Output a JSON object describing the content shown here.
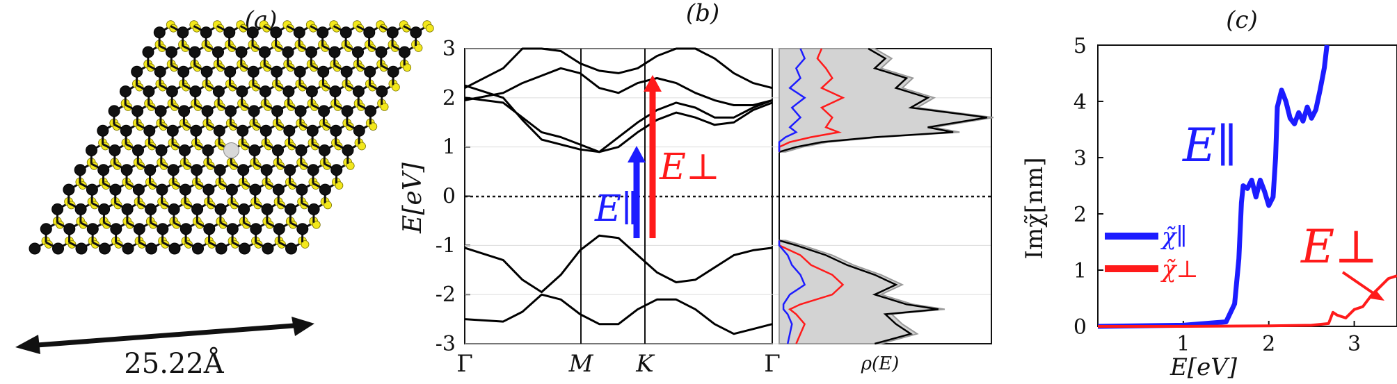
{
  "panels": {
    "a": {
      "label": "(a)",
      "scale_label": "25.22Å",
      "colors": {
        "sulfur": "#f3e81c",
        "metal": "#111111",
        "dopant": "#d8d8d8",
        "bond": "#111111"
      }
    },
    "b": {
      "label": "(b)",
      "ylabel": "E[eV]",
      "yticks": [
        "3",
        "2",
        "1",
        "0",
        "-1",
        "-2",
        "-3"
      ],
      "kpoints": [
        "Γ",
        "M",
        "K",
        "Γ"
      ],
      "dos_label": "ρ(E)",
      "arrow_parallel_label": "E∥",
      "arrow_perp_label": "E⊥",
      "colors": {
        "parallel": "#1c1cff",
        "perp": "#ff1a1a",
        "bands": "#000000",
        "dos_fill": "#d3d3d3"
      }
    },
    "c": {
      "label": "(c)",
      "ylabel": "Imχ̃[nm]",
      "xlabel": "E[eV]",
      "xticks": [
        "1",
        "2",
        "3"
      ],
      "yticks": [
        "0",
        "1",
        "2",
        "3",
        "4",
        "5"
      ],
      "legend": [
        "χ̃∥",
        "χ̃⊥"
      ],
      "annot_parallel": "E∥",
      "annot_perp": "E⊥"
    }
  },
  "chart_data": [
    {
      "type": "line",
      "panel": "b",
      "title": "",
      "xlabel": "",
      "ylabel": "E[eV]",
      "ylim": [
        -3,
        3
      ],
      "x_categories": [
        "Γ",
        "M",
        "K",
        "Γ"
      ],
      "x": [
        0,
        0.5,
        0.75,
        1.0,
        1.25,
        1.5,
        1.75,
        2.0,
        2.25,
        2.5,
        2.75,
        3.0,
        3.25,
        3.5,
        3.75,
        4.0
      ],
      "series": [
        {
          "values": [
            -1.05,
            -1.3,
            -1.7,
            -1.95,
            -1.6,
            -1.1,
            -0.8,
            -0.85,
            -1.2,
            -1.55,
            -1.75,
            -1.7,
            -1.45,
            -1.2,
            -1.1,
            -1.05
          ]
        },
        {
          "values": [
            -2.5,
            -2.55,
            -2.35,
            -2.0,
            -2.1,
            -2.4,
            -2.6,
            -2.6,
            -2.3,
            -2.1,
            -2.1,
            -2.3,
            -2.6,
            -2.8,
            -2.7,
            -2.6
          ]
        },
        {
          "values": [
            2.25,
            2.0,
            1.55,
            1.15,
            1.05,
            0.95,
            0.9,
            1.2,
            1.5,
            1.75,
            1.9,
            1.8,
            1.6,
            1.6,
            1.8,
            1.95
          ]
        },
        {
          "values": [
            2.0,
            1.9,
            1.6,
            1.3,
            1.2,
            1.05,
            0.9,
            1.0,
            1.3,
            1.55,
            1.7,
            1.6,
            1.45,
            1.5,
            1.75,
            1.9
          ]
        },
        {
          "values": [
            2.2,
            2.6,
            3.0,
            3.0,
            2.95,
            2.7,
            2.55,
            2.5,
            2.6,
            2.85,
            3.0,
            3.0,
            2.8,
            2.5,
            2.3,
            2.2
          ]
        },
        {
          "values": [
            1.95,
            2.1,
            2.3,
            2.45,
            2.6,
            2.5,
            2.2,
            2.1,
            2.3,
            2.4,
            2.3,
            2.1,
            1.95,
            1.85,
            1.85,
            1.95
          ]
        }
      ],
      "arrows": [
        {
          "name": "E∥",
          "x": 0.85,
          "from": -0.8,
          "to": 0.9
        },
        {
          "name": "E⊥",
          "x": 0.95,
          "from": -0.8,
          "to": 2.5
        }
      ]
    },
    {
      "type": "area",
      "panel": "b-dos",
      "xlabel": "ρ(E)",
      "ylim": [
        -3,
        3
      ],
      "energies": [
        3.0,
        2.8,
        2.6,
        2.4,
        2.2,
        2.0,
        1.8,
        1.6,
        1.4,
        1.3,
        1.2,
        1.1,
        1.0,
        0.9,
        -0.9,
        -1.0,
        -1.2,
        -1.4,
        -1.6,
        -1.8,
        -2.0,
        -2.2,
        -2.3,
        -2.4,
        -2.6,
        -2.8,
        -3.0
      ],
      "series": [
        {
          "name": "total",
          "values": [
            0.42,
            0.5,
            0.45,
            0.6,
            0.55,
            0.7,
            0.62,
            0.98,
            0.7,
            0.82,
            0.45,
            0.2,
            0.08,
            0.0,
            0.0,
            0.08,
            0.22,
            0.32,
            0.45,
            0.55,
            0.45,
            0.6,
            0.75,
            0.5,
            0.55,
            0.62,
            0.45
          ]
        },
        {
          "name": "red",
          "values": [
            0.2,
            0.18,
            0.22,
            0.25,
            0.2,
            0.3,
            0.2,
            0.25,
            0.22,
            0.28,
            0.15,
            0.05,
            0.0,
            0.0,
            0.0,
            0.0,
            0.1,
            0.15,
            0.25,
            0.3,
            0.25,
            0.1,
            0.05,
            0.08,
            0.12,
            0.1,
            0.08
          ]
        },
        {
          "name": "blue",
          "values": [
            0.1,
            0.12,
            0.08,
            0.1,
            0.05,
            0.12,
            0.06,
            0.1,
            0.05,
            0.08,
            0.03,
            0.0,
            0.0,
            0.0,
            0.0,
            0.0,
            0.04,
            0.06,
            0.1,
            0.12,
            0.05,
            0.02,
            0.02,
            0.04,
            0.06,
            0.05,
            0.04
          ]
        }
      ]
    },
    {
      "type": "line",
      "panel": "c",
      "xlabel": "E[eV]",
      "ylabel": "Imχ̃[nm]",
      "xlim": [
        0,
        3.5
      ],
      "ylim": [
        0,
        5
      ],
      "series": [
        {
          "name": "χ̃∥",
          "x": [
            0.0,
            1.0,
            1.5,
            1.6,
            1.65,
            1.68,
            1.7,
            1.75,
            1.8,
            1.85,
            1.9,
            1.95,
            2.0,
            2.05,
            2.08,
            2.1,
            2.15,
            2.2,
            2.25,
            2.3,
            2.35,
            2.4,
            2.45,
            2.5,
            2.55,
            2.6,
            2.65,
            2.68
          ],
          "y": [
            0.0,
            0.02,
            0.08,
            0.4,
            1.2,
            2.2,
            2.5,
            2.45,
            2.6,
            2.3,
            2.6,
            2.4,
            2.15,
            2.3,
            3.0,
            3.9,
            4.2,
            4.0,
            3.7,
            3.6,
            3.8,
            3.65,
            3.9,
            3.7,
            3.85,
            4.2,
            4.6,
            5.0
          ]
        },
        {
          "name": "χ̃⊥",
          "x": [
            0.0,
            1.0,
            2.0,
            2.5,
            2.7,
            2.75,
            2.8,
            2.9,
            3.0,
            3.1,
            3.2,
            3.3,
            3.4,
            3.5
          ],
          "y": [
            0.0,
            0.0,
            0.01,
            0.02,
            0.05,
            0.25,
            0.2,
            0.15,
            0.3,
            0.35,
            0.55,
            0.7,
            0.85,
            0.9
          ]
        }
      ]
    }
  ]
}
